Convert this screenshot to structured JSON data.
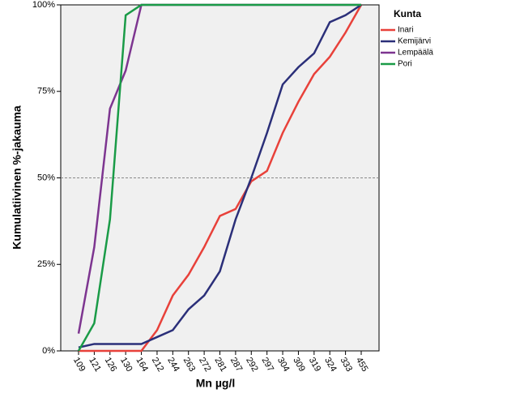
{
  "chart_data": {
    "type": "line",
    "x_label": "Mn µg/l",
    "y_label": "Kumulatiivinen  %-jakauma",
    "categories": [
      "109",
      "121",
      "126",
      "130",
      "164",
      "212",
      "244",
      "263",
      "272",
      "281",
      "287",
      "292",
      "297",
      "304",
      "309",
      "319",
      "324",
      "333",
      "455"
    ],
    "ylim": [
      0,
      100
    ],
    "yticks": [
      {
        "value": 0,
        "label": "0%"
      },
      {
        "value": 25,
        "label": "25%"
      },
      {
        "value": 50,
        "label": "50%"
      },
      {
        "value": 75,
        "label": "75%"
      },
      {
        "value": 100,
        "label": "100%"
      }
    ],
    "reference_line": 50,
    "legend_title": "Kunta",
    "series": [
      {
        "name": "Inari",
        "color": "#e8413a",
        "values": [
          0,
          0,
          0,
          0,
          0,
          6,
          16,
          22,
          30,
          39,
          41,
          49,
          52,
          63,
          72,
          80,
          85,
          92,
          100
        ]
      },
      {
        "name": "Kemijärvi",
        "color": "#2b2f79",
        "values": [
          1,
          2,
          2,
          2,
          2,
          4,
          6,
          12,
          16,
          23,
          38,
          50,
          63,
          77,
          82,
          86,
          95,
          97,
          100
        ]
      },
      {
        "name": "Lempäälä",
        "color": "#7d3590",
        "values": [
          5,
          30,
          70,
          81,
          100,
          100,
          100,
          100,
          100,
          100,
          100,
          100,
          100,
          100,
          100,
          100,
          100,
          100,
          100
        ]
      },
      {
        "name": "Pori",
        "color": "#1a9b47",
        "values": [
          0,
          8,
          38,
          97,
          100,
          100,
          100,
          100,
          100,
          100,
          100,
          100,
          100,
          100,
          100,
          100,
          100,
          100,
          100
        ]
      }
    ]
  }
}
